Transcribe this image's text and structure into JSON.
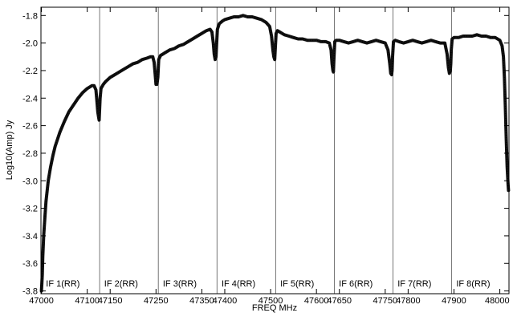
{
  "chart_data": {
    "type": "line",
    "title": "",
    "xlabel": "FREQ MHz",
    "ylabel": "Log10(Amp) Jy",
    "xlim": [
      46999,
      48020
    ],
    "ylim": [
      -3.82,
      -1.74
    ],
    "x_ticks": [
      47000,
      47100,
      47150,
      47250,
      47350,
      47400,
      47500,
      47600,
      47650,
      47750,
      47800,
      47900,
      48000
    ],
    "x_tick_labels": [
      "47000",
      "47100",
      "47150",
      "47250",
      "47350",
      "47400",
      "47500",
      "47600",
      "47650",
      "47750",
      "47800",
      "47900",
      "48000"
    ],
    "y_ticks": [
      -1.8,
      -2.0,
      -2.2,
      -2.4,
      -2.6,
      -2.8,
      -3.0,
      -3.2,
      -3.4,
      -3.6,
      -3.8
    ],
    "y_tick_labels": [
      "-1.8",
      "-2.0",
      "-2.2",
      "-2.4",
      "-2.6",
      "-2.8",
      "-3.0",
      "-3.2",
      "-3.4",
      "-3.6",
      "-3.8"
    ],
    "if_boundaries": [
      47127,
      47255,
      47383,
      47511,
      47639,
      47767,
      47895
    ],
    "if_labels": [
      {
        "label": "IF 1(RR)",
        "x": 47010
      },
      {
        "label": "IF 2(RR)",
        "x": 47137
      },
      {
        "label": "IF 3(RR)",
        "x": 47265
      },
      {
        "label": "IF 4(RR)",
        "x": 47393
      },
      {
        "label": "IF 5(RR)",
        "x": 47521
      },
      {
        "label": "IF 6(RR)",
        "x": 47649
      },
      {
        "label": "IF 7(RR)",
        "x": 47777
      },
      {
        "label": "IF 8(RR)",
        "x": 47905
      }
    ],
    "series": [
      {
        "x": [
          47000,
          47001,
          47002,
          47003,
          47005,
          47008,
          47010,
          47015,
          47020,
          47025,
          47030,
          47040,
          47050,
          47060,
          47070,
          47080,
          47090,
          47100,
          47110,
          47115,
          47119,
          47121,
          47123,
          47125,
          47126,
          47128,
          47130,
          47135,
          47140,
          47150,
          47160,
          47170,
          47180,
          47190,
          47200,
          47210,
          47220,
          47230,
          47238,
          47243,
          47246,
          47248,
          47250,
          47252,
          47254,
          47256,
          47260,
          47265,
          47270,
          47280,
          47290,
          47300,
          47310,
          47320,
          47330,
          47340,
          47350,
          47360,
          47368,
          47372,
          47375,
          47377,
          47379,
          47381,
          47382,
          47384,
          47388,
          47395,
          47400,
          47410,
          47420,
          47430,
          47440,
          47450,
          47460,
          47470,
          47480,
          47490,
          47498,
          47502,
          47505,
          47507,
          47509,
          47510,
          47512,
          47515,
          47520,
          47530,
          47540,
          47550,
          47560,
          47570,
          47580,
          47590,
          47600,
          47610,
          47620,
          47628,
          47632,
          47634,
          47636,
          47637,
          47638,
          47640,
          47643,
          47650,
          47660,
          47670,
          47680,
          47690,
          47700,
          47710,
          47720,
          47730,
          47740,
          47750,
          47756,
          47760,
          47762,
          47764,
          47765,
          47766,
          47768,
          47772,
          47780,
          47790,
          47800,
          47810,
          47820,
          47830,
          47840,
          47850,
          47860,
          47870,
          47880,
          47885,
          47888,
          47890,
          47892,
          47893,
          47894,
          47896,
          47900,
          47910,
          47920,
          47930,
          47940,
          47950,
          47960,
          47970,
          47980,
          47990,
          48000,
          48005,
          48008,
          48010,
          48012,
          48014,
          48016,
          48018,
          48019
        ],
        "y": [
          -3.8,
          -3.75,
          -3.68,
          -3.55,
          -3.4,
          -3.25,
          -3.15,
          -3.0,
          -2.9,
          -2.82,
          -2.75,
          -2.65,
          -2.57,
          -2.5,
          -2.45,
          -2.4,
          -2.36,
          -2.33,
          -2.31,
          -2.31,
          -2.34,
          -2.42,
          -2.5,
          -2.54,
          -2.56,
          -2.4,
          -2.33,
          -2.3,
          -2.28,
          -2.25,
          -2.23,
          -2.21,
          -2.19,
          -2.17,
          -2.15,
          -2.14,
          -2.12,
          -2.11,
          -2.1,
          -2.1,
          -2.14,
          -2.22,
          -2.3,
          -2.3,
          -2.25,
          -2.12,
          -2.09,
          -2.08,
          -2.07,
          -2.05,
          -2.04,
          -2.02,
          -2.01,
          -1.99,
          -1.97,
          -1.95,
          -1.93,
          -1.91,
          -1.9,
          -1.92,
          -2.0,
          -2.08,
          -2.12,
          -2.1,
          -2.02,
          -1.9,
          -1.86,
          -1.84,
          -1.83,
          -1.82,
          -1.81,
          -1.81,
          -1.8,
          -1.81,
          -1.81,
          -1.82,
          -1.83,
          -1.85,
          -1.88,
          -1.95,
          -2.05,
          -2.1,
          -2.12,
          -2.05,
          -1.93,
          -1.91,
          -1.92,
          -1.94,
          -1.95,
          -1.96,
          -1.97,
          -1.97,
          -1.98,
          -1.98,
          -1.98,
          -1.99,
          -1.99,
          -2.0,
          -2.05,
          -2.15,
          -2.2,
          -2.21,
          -2.12,
          -1.99,
          -1.98,
          -1.98,
          -1.99,
          -2.0,
          -1.99,
          -1.98,
          -1.99,
          -2.0,
          -1.99,
          -1.98,
          -1.99,
          -2.0,
          -2.05,
          -2.15,
          -2.22,
          -2.23,
          -2.2,
          -2.1,
          -1.99,
          -1.98,
          -1.99,
          -2.0,
          -1.99,
          -1.98,
          -1.99,
          -2.0,
          -1.99,
          -1.98,
          -1.99,
          -2.0,
          -2.0,
          -2.08,
          -2.18,
          -2.22,
          -2.2,
          -2.15,
          -2.05,
          -1.97,
          -1.96,
          -1.96,
          -1.95,
          -1.95,
          -1.95,
          -1.94,
          -1.95,
          -1.95,
          -1.96,
          -1.96,
          -1.98,
          -2.02,
          -2.1,
          -2.25,
          -2.45,
          -2.7,
          -2.9,
          -3.03,
          -3.07
        ]
      }
    ]
  }
}
